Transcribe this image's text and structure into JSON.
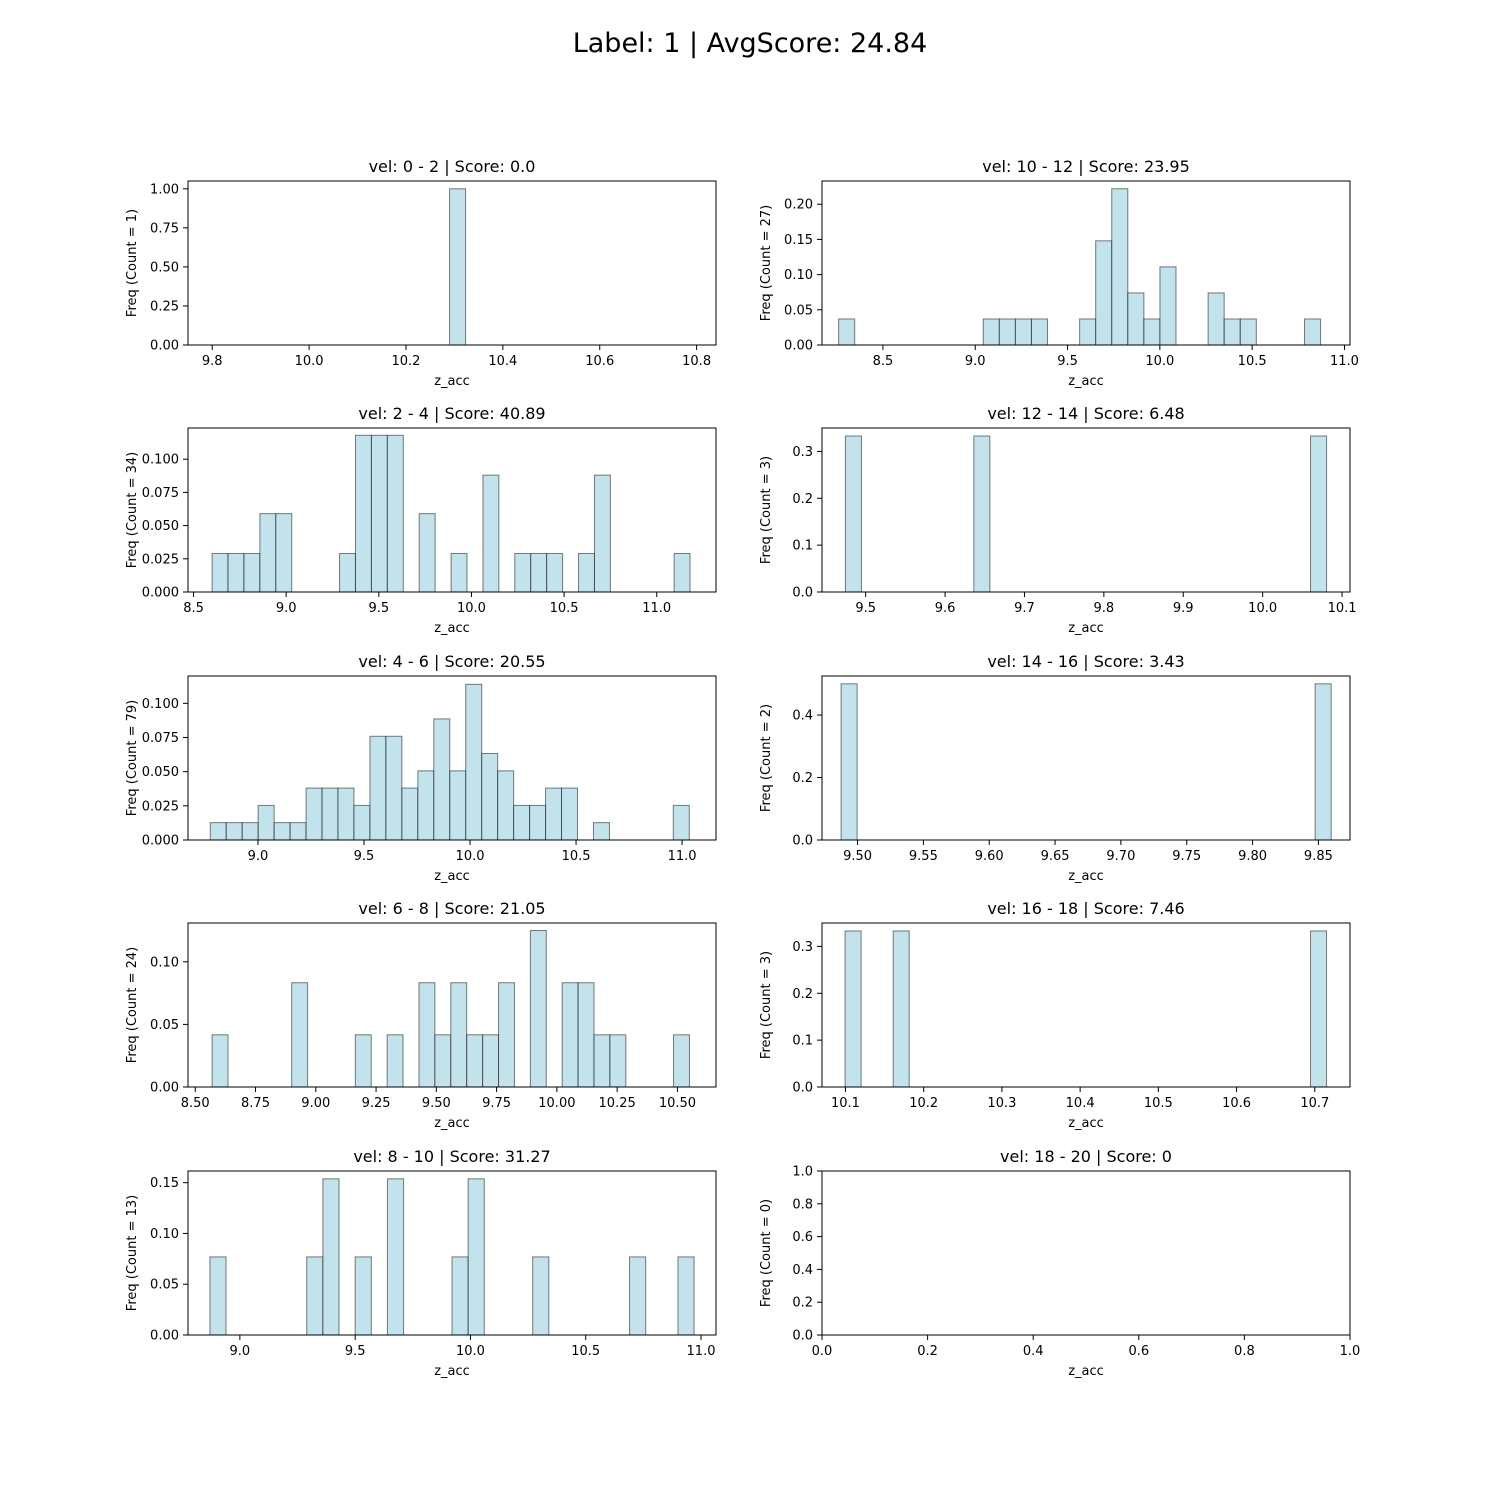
{
  "suptitle": "Label: 1 | AvgScore: 24.84",
  "style": {
    "bar_fill": "#add8e6",
    "bar_edge": "#000000",
    "axis_color": "#000000"
  },
  "chart_data": [
    {
      "type": "bar",
      "title": "vel: 0 - 2 | Score: 0.0",
      "xlabel": "z_acc",
      "ylabel": "Freq (Count = 1)",
      "xlim": [
        9.75,
        10.84
      ],
      "ylim": [
        0,
        1.05
      ],
      "xticks": [
        9.8,
        10.0,
        10.2,
        10.4,
        10.6,
        10.8
      ],
      "xtick_labels": [
        "9.8",
        "10.0",
        "10.2",
        "10.4",
        "10.6",
        "10.8"
      ],
      "yticks": [
        0,
        0.25,
        0.5,
        0.75,
        1.0
      ],
      "ytick_labels": [
        "0.00",
        "0.25",
        "0.50",
        "0.75",
        "1.00"
      ],
      "bars": [
        {
          "x0": 10.29,
          "x1": 10.323,
          "value": 1.0
        }
      ]
    },
    {
      "type": "bar",
      "title": "vel: 10 - 12 | Score: 23.95",
      "xlabel": "z_acc",
      "ylabel": "Freq (Count = 27)",
      "xlim": [
        8.17,
        11.03
      ],
      "ylim": [
        0,
        0.233
      ],
      "xticks": [
        8.5,
        9.0,
        9.5,
        10.0,
        10.5,
        11.0
      ],
      "xtick_labels": [
        "8.5",
        "9.0",
        "9.5",
        "10.0",
        "10.5",
        "11.0"
      ],
      "yticks": [
        0,
        0.05,
        0.1,
        0.15,
        0.2
      ],
      "ytick_labels": [
        "0.00",
        "0.05",
        "0.10",
        "0.15",
        "0.20"
      ],
      "bars": [
        {
          "x0": 8.26,
          "x1": 8.347,
          "value": 0.037
        },
        {
          "x0": 9.0435,
          "x1": 9.1305,
          "value": 0.037
        },
        {
          "x0": 9.1305,
          "x1": 9.2175,
          "value": 0.037
        },
        {
          "x0": 9.2175,
          "x1": 9.3045,
          "value": 0.037
        },
        {
          "x0": 9.3045,
          "x1": 9.3915,
          "value": 0.037
        },
        {
          "x0": 9.5655,
          "x1": 9.6525,
          "value": 0.037
        },
        {
          "x0": 9.6525,
          "x1": 9.7395,
          "value": 0.148
        },
        {
          "x0": 9.7395,
          "x1": 9.8265,
          "value": 0.222
        },
        {
          "x0": 9.8265,
          "x1": 9.9135,
          "value": 0.074
        },
        {
          "x0": 9.9135,
          "x1": 10.0005,
          "value": 0.037
        },
        {
          "x0": 10.0005,
          "x1": 10.0875,
          "value": 0.111
        },
        {
          "x0": 10.2615,
          "x1": 10.3485,
          "value": 0.074
        },
        {
          "x0": 10.3485,
          "x1": 10.4355,
          "value": 0.037
        },
        {
          "x0": 10.4355,
          "x1": 10.5225,
          "value": 0.037
        },
        {
          "x0": 10.7835,
          "x1": 10.8705,
          "value": 0.037
        }
      ]
    },
    {
      "type": "bar",
      "title": "vel: 2 - 4 | Score: 40.89",
      "xlabel": "z_acc",
      "ylabel": "Freq (Count = 34)",
      "xlim": [
        8.47,
        11.32
      ],
      "ylim": [
        0,
        0.1235
      ],
      "xticks": [
        8.5,
        9.0,
        9.5,
        10.0,
        10.5,
        11.0
      ],
      "xtick_labels": [
        "8.5",
        "9.0",
        "9.5",
        "10.0",
        "10.5",
        "11.0"
      ],
      "yticks": [
        0,
        0.025,
        0.05,
        0.075,
        0.1
      ],
      "ytick_labels": [
        "0.000",
        "0.025",
        "0.050",
        "0.075",
        "0.100"
      ],
      "bars": [
        {
          "x0": 8.6,
          "x1": 8.686,
          "value": 0.029
        },
        {
          "x0": 8.686,
          "x1": 8.772,
          "value": 0.029
        },
        {
          "x0": 8.772,
          "x1": 8.858,
          "value": 0.029
        },
        {
          "x0": 8.858,
          "x1": 8.944,
          "value": 0.059
        },
        {
          "x0": 8.944,
          "x1": 9.03,
          "value": 0.059
        },
        {
          "x0": 9.288,
          "x1": 9.374,
          "value": 0.029
        },
        {
          "x0": 9.374,
          "x1": 9.46,
          "value": 0.118
        },
        {
          "x0": 9.46,
          "x1": 9.546,
          "value": 0.118
        },
        {
          "x0": 9.546,
          "x1": 9.632,
          "value": 0.118
        },
        {
          "x0": 9.718,
          "x1": 9.804,
          "value": 0.059
        },
        {
          "x0": 9.89,
          "x1": 9.976,
          "value": 0.029
        },
        {
          "x0": 10.062,
          "x1": 10.148,
          "value": 0.088
        },
        {
          "x0": 10.234,
          "x1": 10.32,
          "value": 0.029
        },
        {
          "x0": 10.32,
          "x1": 10.406,
          "value": 0.029
        },
        {
          "x0": 10.406,
          "x1": 10.492,
          "value": 0.029
        },
        {
          "x0": 10.578,
          "x1": 10.664,
          "value": 0.029
        },
        {
          "x0": 10.664,
          "x1": 10.75,
          "value": 0.088
        },
        {
          "x0": 11.094,
          "x1": 11.18,
          "value": 0.029
        }
      ]
    },
    {
      "type": "bar",
      "title": "vel: 12 - 14 | Score: 6.48",
      "xlabel": "z_acc",
      "ylabel": "Freq (Count = 3)",
      "xlim": [
        9.445,
        10.11
      ],
      "ylim": [
        0,
        0.35
      ],
      "xticks": [
        9.5,
        9.6,
        9.7,
        9.8,
        9.9,
        10.0,
        10.1
      ],
      "xtick_labels": [
        "9.5",
        "9.6",
        "9.7",
        "9.8",
        "9.9",
        "10.0",
        "10.1"
      ],
      "yticks": [
        0,
        0.1,
        0.2,
        0.3
      ],
      "ytick_labels": [
        "0.0",
        "0.1",
        "0.2",
        "0.3"
      ],
      "bars": [
        {
          "x0": 9.4745,
          "x1": 9.4947,
          "value": 0.333
        },
        {
          "x0": 9.6362,
          "x1": 9.6564,
          "value": 0.333
        },
        {
          "x0": 10.0603,
          "x1": 10.0805,
          "value": 0.333
        }
      ]
    },
    {
      "type": "bar",
      "title": "vel: 4 - 6 | Score: 20.55",
      "xlabel": "z_acc",
      "ylabel": "Freq (Count = 79)",
      "xlim": [
        8.67,
        11.16
      ],
      "ylim": [
        0,
        0.12
      ],
      "xticks": [
        9.0,
        9.5,
        10.0,
        10.5,
        11.0
      ],
      "xtick_labels": [
        "9.0",
        "9.5",
        "10.0",
        "10.5",
        "11.0"
      ],
      "yticks": [
        0,
        0.025,
        0.05,
        0.075,
        0.1
      ],
      "ytick_labels": [
        "0.000",
        "0.025",
        "0.050",
        "0.075",
        "0.100"
      ],
      "bars": [
        {
          "x0": 8.775,
          "x1": 8.8503,
          "value": 0.0127
        },
        {
          "x0": 8.8503,
          "x1": 8.9256,
          "value": 0.0127
        },
        {
          "x0": 8.9256,
          "x1": 9.0009,
          "value": 0.0127
        },
        {
          "x0": 9.0009,
          "x1": 9.0762,
          "value": 0.0253
        },
        {
          "x0": 9.0762,
          "x1": 9.1515,
          "value": 0.0127
        },
        {
          "x0": 9.1515,
          "x1": 9.2268,
          "value": 0.0127
        },
        {
          "x0": 9.2268,
          "x1": 9.3021,
          "value": 0.038
        },
        {
          "x0": 9.3021,
          "x1": 9.3774,
          "value": 0.038
        },
        {
          "x0": 9.3774,
          "x1": 9.4527,
          "value": 0.038
        },
        {
          "x0": 9.4527,
          "x1": 9.528,
          "value": 0.0253
        },
        {
          "x0": 9.528,
          "x1": 9.6033,
          "value": 0.0759
        },
        {
          "x0": 9.6033,
          "x1": 9.6786,
          "value": 0.0759
        },
        {
          "x0": 9.6786,
          "x1": 9.7539,
          "value": 0.038
        },
        {
          "x0": 9.7539,
          "x1": 9.8292,
          "value": 0.0506
        },
        {
          "x0": 9.8292,
          "x1": 9.9045,
          "value": 0.0886
        },
        {
          "x0": 9.9045,
          "x1": 9.9798,
          "value": 0.0506
        },
        {
          "x0": 9.9798,
          "x1": 10.0551,
          "value": 0.1139
        },
        {
          "x0": 10.0551,
          "x1": 10.1304,
          "value": 0.0633
        },
        {
          "x0": 10.1304,
          "x1": 10.2057,
          "value": 0.0506
        },
        {
          "x0": 10.2057,
          "x1": 10.281,
          "value": 0.0253
        },
        {
          "x0": 10.281,
          "x1": 10.3563,
          "value": 0.0253
        },
        {
          "x0": 10.3563,
          "x1": 10.4316,
          "value": 0.038
        },
        {
          "x0": 10.4316,
          "x1": 10.5069,
          "value": 0.038
        },
        {
          "x0": 10.5822,
          "x1": 10.6575,
          "value": 0.0127
        },
        {
          "x0": 10.9587,
          "x1": 11.034,
          "value": 0.0253
        }
      ]
    },
    {
      "type": "bar",
      "title": "vel: 14 - 16 | Score: 3.43",
      "xlabel": "z_acc",
      "ylabel": "Freq (Count = 2)",
      "xlim": [
        9.473,
        9.874
      ],
      "ylim": [
        0,
        0.525
      ],
      "xticks": [
        9.5,
        9.55,
        9.6,
        9.65,
        9.7,
        9.75,
        9.8,
        9.85
      ],
      "xtick_labels": [
        "9.50",
        "9.55",
        "9.60",
        "9.65",
        "9.70",
        "9.75",
        "9.80",
        "9.85"
      ],
      "yticks": [
        0,
        0.2,
        0.4
      ],
      "ytick_labels": [
        "0.0",
        "0.2",
        "0.4"
      ],
      "bars": [
        {
          "x0": 9.4875,
          "x1": 9.4997,
          "value": 0.5
        },
        {
          "x0": 9.8475,
          "x1": 9.8597,
          "value": 0.5
        }
      ]
    },
    {
      "type": "bar",
      "title": "vel: 6 - 8 | Score: 21.05",
      "xlabel": "z_acc",
      "ylabel": "Freq (Count = 24)",
      "xlim": [
        8.47,
        10.66
      ],
      "ylim": [
        0,
        0.131
      ],
      "xticks": [
        8.5,
        8.75,
        9.0,
        9.25,
        9.5,
        9.75,
        10.0,
        10.25,
        10.5
      ],
      "xtick_labels": [
        "8.50",
        "8.75",
        "9.00",
        "9.25",
        "9.50",
        "9.75",
        "10.00",
        "10.25",
        "10.50"
      ],
      "yticks": [
        0,
        0.05,
        0.1
      ],
      "ytick_labels": [
        "0.00",
        "0.05",
        "0.10"
      ],
      "bars": [
        {
          "x0": 8.57,
          "x1": 8.636,
          "value": 0.0417
        },
        {
          "x0": 8.9,
          "x1": 8.966,
          "value": 0.0833
        },
        {
          "x0": 9.164,
          "x1": 9.23,
          "value": 0.0417
        },
        {
          "x0": 9.296,
          "x1": 9.362,
          "value": 0.0417
        },
        {
          "x0": 9.428,
          "x1": 9.494,
          "value": 0.0833
        },
        {
          "x0": 9.494,
          "x1": 9.56,
          "value": 0.0417
        },
        {
          "x0": 9.56,
          "x1": 9.626,
          "value": 0.0833
        },
        {
          "x0": 9.626,
          "x1": 9.692,
          "value": 0.0417
        },
        {
          "x0": 9.692,
          "x1": 9.758,
          "value": 0.0417
        },
        {
          "x0": 9.758,
          "x1": 9.824,
          "value": 0.0833
        },
        {
          "x0": 9.89,
          "x1": 9.956,
          "value": 0.125
        },
        {
          "x0": 10.022,
          "x1": 10.088,
          "value": 0.0833
        },
        {
          "x0": 10.088,
          "x1": 10.154,
          "value": 0.0833
        },
        {
          "x0": 10.154,
          "x1": 10.22,
          "value": 0.0417
        },
        {
          "x0": 10.22,
          "x1": 10.286,
          "value": 0.0417
        },
        {
          "x0": 10.484,
          "x1": 10.55,
          "value": 0.0417
        }
      ]
    },
    {
      "type": "bar",
      "title": "vel: 16 - 18 | Score: 7.46",
      "xlabel": "z_acc",
      "ylabel": "Freq (Count = 3)",
      "xlim": [
        10.07,
        10.745
      ],
      "ylim": [
        0,
        0.35
      ],
      "xticks": [
        10.1,
        10.2,
        10.3,
        10.4,
        10.5,
        10.6,
        10.7
      ],
      "xtick_labels": [
        "10.1",
        "10.2",
        "10.3",
        "10.4",
        "10.5",
        "10.6",
        "10.7"
      ],
      "yticks": [
        0,
        0.1,
        0.2,
        0.3
      ],
      "ytick_labels": [
        "0.0",
        "0.1",
        "0.2",
        "0.3"
      ],
      "bars": [
        {
          "x0": 10.0995,
          "x1": 10.12,
          "value": 0.333
        },
        {
          "x0": 10.161,
          "x1": 10.1815,
          "value": 0.333
        },
        {
          "x0": 10.6945,
          "x1": 10.715,
          "value": 0.333
        }
      ]
    },
    {
      "type": "bar",
      "title": "vel: 8 - 10 | Score: 31.27",
      "xlabel": "z_acc",
      "ylabel": "Freq (Count = 13)",
      "xlim": [
        8.775,
        11.065
      ],
      "ylim": [
        0,
        0.1615
      ],
      "xticks": [
        9.0,
        9.5,
        10.0,
        10.5,
        11.0
      ],
      "xtick_labels": [
        "9.0",
        "9.5",
        "10.0",
        "10.5",
        "11.0"
      ],
      "yticks": [
        0,
        0.05,
        0.1,
        0.15
      ],
      "ytick_labels": [
        "0.00",
        "0.05",
        "0.10",
        "0.15"
      ],
      "bars": [
        {
          "x0": 8.87,
          "x1": 8.94,
          "value": 0.0769
        },
        {
          "x0": 9.29,
          "x1": 9.36,
          "value": 0.0769
        },
        {
          "x0": 9.36,
          "x1": 9.43,
          "value": 0.1538
        },
        {
          "x0": 9.5,
          "x1": 9.57,
          "value": 0.0769
        },
        {
          "x0": 9.64,
          "x1": 9.71,
          "value": 0.1538
        },
        {
          "x0": 9.92,
          "x1": 9.99,
          "value": 0.0769
        },
        {
          "x0": 9.99,
          "x1": 10.06,
          "value": 0.1538
        },
        {
          "x0": 10.27,
          "x1": 10.34,
          "value": 0.0769
        },
        {
          "x0": 10.69,
          "x1": 10.76,
          "value": 0.0769
        },
        {
          "x0": 10.9,
          "x1": 10.97,
          "value": 0.0769
        }
      ]
    },
    {
      "type": "bar",
      "title": "vel: 18 - 20 | Score: 0",
      "xlabel": "z_acc",
      "ylabel": "Freq (Count = 0)",
      "xlim": [
        0,
        1
      ],
      "ylim": [
        0,
        1
      ],
      "xticks": [
        0,
        0.2,
        0.4,
        0.6,
        0.8,
        1.0
      ],
      "xtick_labels": [
        "0.0",
        "0.2",
        "0.4",
        "0.6",
        "0.8",
        "1.0"
      ],
      "yticks": [
        0,
        0.2,
        0.4,
        0.6,
        0.8,
        1.0
      ],
      "ytick_labels": [
        "0.0",
        "0.2",
        "0.4",
        "0.6",
        "0.8",
        "1.0"
      ],
      "bars": []
    }
  ]
}
